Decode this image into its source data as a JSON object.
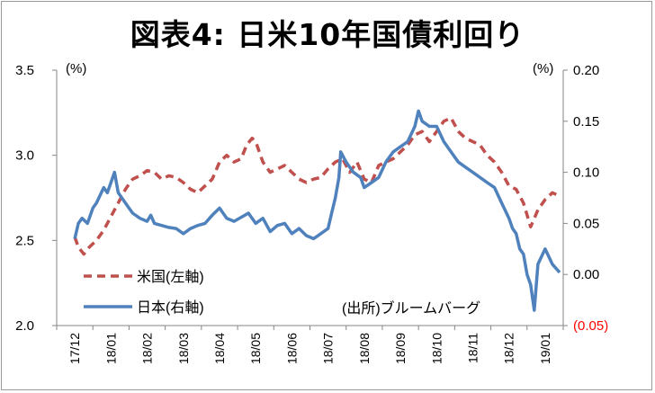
{
  "chart_data": {
    "type": "line",
    "title": "図表4: 日米10年国債利回り",
    "left_axis": {
      "unit": "(%)",
      "ticks": [
        "2.0",
        "2.5",
        "3.0",
        "3.5"
      ],
      "ylim": [
        2.0,
        3.5
      ]
    },
    "right_axis": {
      "unit": "(%)",
      "ticks": [
        "(0.05)",
        "0.00",
        "0.05",
        "0.10",
        "0.15",
        "0.20"
      ],
      "ylim": [
        -0.05,
        0.2
      ],
      "negative_color": "#ff0000"
    },
    "x_ticks": [
      "17/12",
      "18/01",
      "18/02",
      "18/03",
      "18/04",
      "18/05",
      "18/06",
      "18/07",
      "18/08",
      "18/09",
      "18/10",
      "18/11",
      "18/12",
      "19/01"
    ],
    "grid": false,
    "legend_position": "bottom-left",
    "source_note": "(出所)ブルームバーグ",
    "series": [
      {
        "name": "米国(左軸)",
        "axis": "left",
        "color": "#c0504d",
        "dash": "dashed",
        "x": [
          0,
          0.1,
          0.25,
          0.4,
          0.6,
          0.8,
          1.0,
          1.2,
          1.4,
          1.6,
          1.8,
          2.0,
          2.2,
          2.4,
          2.6,
          2.8,
          3.0,
          3.2,
          3.4,
          3.6,
          3.8,
          4.0,
          4.2,
          4.4,
          4.6,
          4.75,
          4.9,
          5.0,
          5.2,
          5.4,
          5.6,
          5.8,
          6.0,
          6.2,
          6.4,
          6.6,
          6.8,
          7.0,
          7.2,
          7.4,
          7.6,
          7.8,
          8.0,
          8.2,
          8.4,
          8.6,
          8.8,
          9.0,
          9.2,
          9.4,
          9.6,
          9.8,
          10.0,
          10.2,
          10.4,
          10.6,
          10.8,
          11.0,
          11.2,
          11.4,
          11.6,
          11.8,
          12.0,
          12.2,
          12.4,
          12.6,
          12.8,
          13.0,
          13.2,
          13.4
        ],
        "values": [
          2.52,
          2.46,
          2.42,
          2.46,
          2.5,
          2.56,
          2.64,
          2.72,
          2.8,
          2.86,
          2.88,
          2.91,
          2.9,
          2.86,
          2.88,
          2.87,
          2.84,
          2.8,
          2.78,
          2.82,
          2.86,
          2.96,
          3.0,
          2.96,
          2.98,
          3.06,
          3.1,
          3.08,
          2.96,
          2.9,
          2.92,
          2.94,
          2.9,
          2.86,
          2.84,
          2.86,
          2.87,
          2.92,
          2.96,
          2.98,
          2.9,
          2.96,
          2.86,
          2.84,
          2.94,
          2.96,
          2.98,
          3.02,
          3.06,
          3.12,
          3.14,
          3.08,
          3.14,
          3.2,
          3.22,
          3.14,
          3.1,
          3.08,
          3.06,
          3.0,
          2.96,
          2.9,
          2.82,
          2.8,
          2.72,
          2.58,
          2.68,
          2.74,
          2.78,
          2.76
        ]
      },
      {
        "name": "日本(右軸)",
        "axis": "right",
        "color": "#4f81bd",
        "dash": "solid",
        "x": [
          0,
          0.1,
          0.2,
          0.35,
          0.5,
          0.6,
          0.8,
          0.9,
          1.0,
          1.1,
          1.2,
          1.3,
          1.4,
          1.6,
          1.8,
          2.0,
          2.1,
          2.2,
          2.4,
          2.6,
          2.8,
          3.0,
          3.2,
          3.4,
          3.6,
          3.8,
          4.0,
          4.2,
          4.4,
          4.6,
          4.8,
          5.0,
          5.2,
          5.4,
          5.6,
          5.8,
          6.0,
          6.2,
          6.4,
          6.6,
          6.8,
          7.0,
          7.1,
          7.2,
          7.3,
          7.35,
          7.5,
          7.7,
          7.9,
          8.0,
          8.2,
          8.4,
          8.6,
          8.8,
          9.0,
          9.2,
          9.4,
          9.5,
          9.6,
          9.8,
          10.0,
          10.2,
          10.4,
          10.6,
          10.8,
          11.0,
          11.2,
          11.4,
          11.6,
          11.8,
          12.0,
          12.1,
          12.2,
          12.3,
          12.4,
          12.5,
          12.6,
          12.7,
          12.8,
          13.0,
          13.2,
          13.4
        ],
        "values": [
          0.035,
          0.05,
          0.055,
          0.05,
          0.065,
          0.07,
          0.085,
          0.08,
          0.09,
          0.1,
          0.08,
          0.075,
          0.07,
          0.06,
          0.055,
          0.052,
          0.058,
          0.05,
          0.048,
          0.046,
          0.045,
          0.04,
          0.045,
          0.048,
          0.05,
          0.058,
          0.065,
          0.055,
          0.052,
          0.056,
          0.06,
          0.05,
          0.055,
          0.042,
          0.048,
          0.05,
          0.04,
          0.045,
          0.038,
          0.035,
          0.04,
          0.045,
          0.06,
          0.075,
          0.095,
          0.12,
          0.11,
          0.1,
          0.095,
          0.085,
          0.09,
          0.095,
          0.11,
          0.12,
          0.125,
          0.13,
          0.145,
          0.16,
          0.15,
          0.145,
          0.145,
          0.13,
          0.12,
          0.11,
          0.105,
          0.1,
          0.095,
          0.09,
          0.085,
          0.07,
          0.055,
          0.045,
          0.04,
          0.025,
          0.02,
          0.0,
          -0.01,
          -0.035,
          0.01,
          0.025,
          0.01,
          0.002
        ]
      }
    ]
  }
}
